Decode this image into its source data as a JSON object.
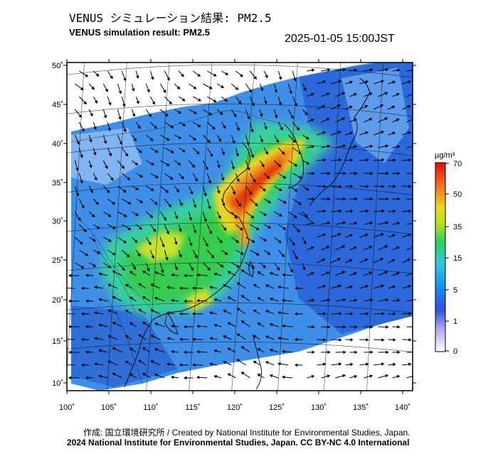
{
  "title_jp": "VENUS シミュレーション結果: PM2.5",
  "title_en": "VENUS simulation result: PM2.5",
  "datetime": "2025-01-05 15:00JST",
  "credit_line1": "作成: 国立環境研究所 / Created by National Institute for Environmental Studies, Japan.",
  "credit_line2": "2024 National Institute for Environmental Studies, Japan. CC BY-NC 4.0 International",
  "map": {
    "lat_labels": [
      "50˚",
      "45˚",
      "40˚",
      "35˚",
      "30˚",
      "25˚",
      "20˚",
      "15˚",
      "10˚"
    ],
    "lon_labels": [
      "100˚",
      "105˚",
      "110˚",
      "115˚",
      "120˚",
      "125˚",
      "130˚",
      "135˚",
      "140˚"
    ]
  },
  "colorbar": {
    "unit": "µg/m³",
    "ticks": [
      "70",
      "50",
      "35",
      "15",
      "5",
      "1",
      "0"
    ]
  },
  "colors": {
    "ocean_low": "#2a62d8",
    "low": "#4aa6ee",
    "moderate": "#35d27a",
    "high": "#f0d020",
    "very_high": "#e63c10"
  }
}
